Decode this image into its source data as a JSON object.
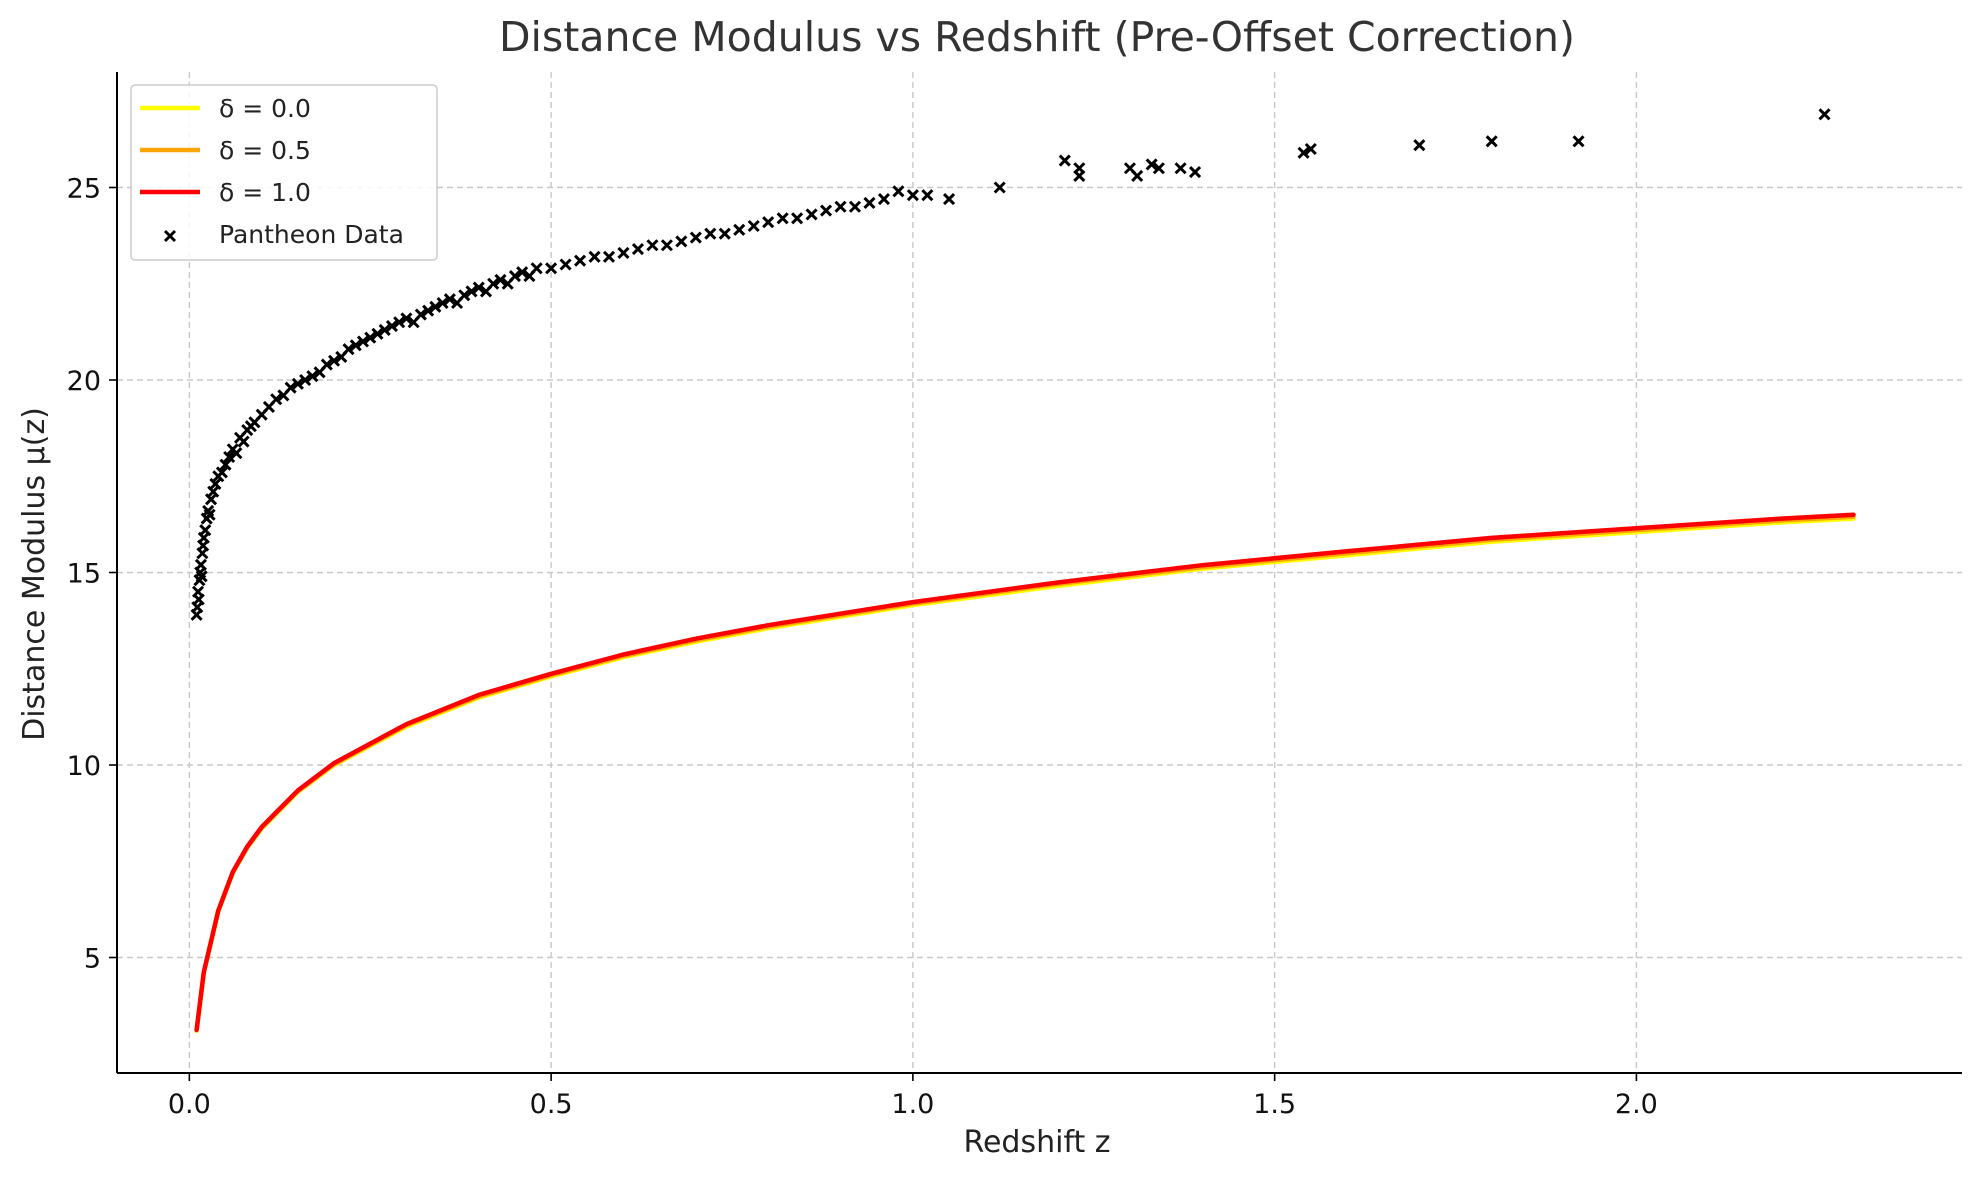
{
  "chart_data": {
    "type": "scatter",
    "title": "Distance Modulus vs Redshift (Pre-Offset Correction)",
    "xlabel": "Redshift z",
    "ylabel": "Distance Modulus μ(z)",
    "xlim": [
      -0.1,
      2.45
    ],
    "ylim": [
      2.0,
      28.0
    ],
    "xticks": [
      0.0,
      0.5,
      1.0,
      1.5,
      2.0
    ],
    "xtick_labels": [
      "0.0",
      "0.5",
      "1.0",
      "1.5",
      "2.0"
    ],
    "yticks": [
      5,
      10,
      15,
      20,
      25
    ],
    "ytick_labels": [
      "5",
      "10",
      "15",
      "20",
      "25"
    ],
    "grid": true,
    "legend_position": "top-left",
    "series": [
      {
        "name": "δ = 0.0",
        "kind": "line",
        "color": "#ffff00",
        "x": [
          0.01,
          0.02,
          0.04,
          0.06,
          0.08,
          0.1,
          0.15,
          0.2,
          0.3,
          0.4,
          0.5,
          0.6,
          0.7,
          0.8,
          1.0,
          1.2,
          1.4,
          1.6,
          1.8,
          2.0,
          2.2,
          2.3
        ],
        "y": [
          3.1,
          4.6,
          6.2,
          7.2,
          7.85,
          8.35,
          9.3,
          10.0,
          11.0,
          11.75,
          12.3,
          12.8,
          13.2,
          13.55,
          14.15,
          14.65,
          15.1,
          15.45,
          15.8,
          16.05,
          16.3,
          16.4
        ]
      },
      {
        "name": "δ = 0.5",
        "kind": "line",
        "color": "#ffa500",
        "x": [
          0.01,
          0.02,
          0.04,
          0.06,
          0.08,
          0.1,
          0.15,
          0.2,
          0.3,
          0.4,
          0.5,
          0.6,
          0.7,
          0.8,
          1.0,
          1.2,
          1.4,
          1.6,
          1.8,
          2.0,
          2.2,
          2.3
        ],
        "y": [
          3.11,
          4.61,
          6.21,
          7.21,
          7.86,
          8.37,
          9.32,
          10.02,
          11.03,
          11.78,
          12.33,
          12.83,
          13.24,
          13.59,
          14.19,
          14.7,
          15.14,
          15.5,
          15.85,
          16.1,
          16.35,
          16.45
        ]
      },
      {
        "name": "δ = 1.0",
        "kind": "line",
        "color": "#ff0000",
        "x": [
          0.01,
          0.02,
          0.04,
          0.06,
          0.08,
          0.1,
          0.15,
          0.2,
          0.3,
          0.4,
          0.5,
          0.6,
          0.7,
          0.8,
          1.0,
          1.2,
          1.4,
          1.6,
          1.8,
          2.0,
          2.2,
          2.3
        ],
        "y": [
          3.12,
          4.62,
          6.22,
          7.22,
          7.88,
          8.39,
          9.34,
          10.05,
          11.06,
          11.82,
          12.37,
          12.87,
          13.28,
          13.63,
          14.23,
          14.74,
          15.19,
          15.55,
          15.9,
          16.15,
          16.4,
          16.5
        ]
      },
      {
        "name": "Pantheon Data",
        "kind": "scatter",
        "color": "#000000",
        "marker": "x",
        "points": [
          [
            0.01,
            13.9
          ],
          [
            0.011,
            14.1
          ],
          [
            0.012,
            14.5
          ],
          [
            0.013,
            14.3
          ],
          [
            0.014,
            14.8
          ],
          [
            0.015,
            15.0
          ],
          [
            0.016,
            15.2
          ],
          [
            0.017,
            14.9
          ],
          [
            0.018,
            15.5
          ],
          [
            0.019,
            15.7
          ],
          [
            0.02,
            15.9
          ],
          [
            0.022,
            16.1
          ],
          [
            0.024,
            16.4
          ],
          [
            0.026,
            16.6
          ],
          [
            0.028,
            16.5
          ],
          [
            0.03,
            16.9
          ],
          [
            0.033,
            17.1
          ],
          [
            0.036,
            17.3
          ],
          [
            0.04,
            17.5
          ],
          [
            0.045,
            17.6
          ],
          [
            0.05,
            17.8
          ],
          [
            0.055,
            18.0
          ],
          [
            0.06,
            18.2
          ],
          [
            0.065,
            18.1
          ],
          [
            0.07,
            18.5
          ],
          [
            0.075,
            18.4
          ],
          [
            0.08,
            18.7
          ],
          [
            0.085,
            18.8
          ],
          [
            0.09,
            18.9
          ],
          [
            0.1,
            19.1
          ],
          [
            0.11,
            19.3
          ],
          [
            0.12,
            19.5
          ],
          [
            0.13,
            19.6
          ],
          [
            0.14,
            19.8
          ],
          [
            0.15,
            19.9
          ],
          [
            0.16,
            20.0
          ],
          [
            0.17,
            20.1
          ],
          [
            0.18,
            20.2
          ],
          [
            0.19,
            20.4
          ],
          [
            0.2,
            20.5
          ],
          [
            0.21,
            20.6
          ],
          [
            0.22,
            20.8
          ],
          [
            0.23,
            20.9
          ],
          [
            0.24,
            21.0
          ],
          [
            0.25,
            21.1
          ],
          [
            0.26,
            21.2
          ],
          [
            0.27,
            21.3
          ],
          [
            0.28,
            21.4
          ],
          [
            0.29,
            21.5
          ],
          [
            0.3,
            21.6
          ],
          [
            0.31,
            21.5
          ],
          [
            0.32,
            21.7
          ],
          [
            0.33,
            21.8
          ],
          [
            0.34,
            21.9
          ],
          [
            0.35,
            22.0
          ],
          [
            0.36,
            22.1
          ],
          [
            0.37,
            22.0
          ],
          [
            0.38,
            22.2
          ],
          [
            0.39,
            22.3
          ],
          [
            0.4,
            22.4
          ],
          [
            0.41,
            22.3
          ],
          [
            0.42,
            22.5
          ],
          [
            0.43,
            22.6
          ],
          [
            0.44,
            22.5
          ],
          [
            0.45,
            22.7
          ],
          [
            0.46,
            22.8
          ],
          [
            0.47,
            22.7
          ],
          [
            0.48,
            22.9
          ],
          [
            0.5,
            22.9
          ],
          [
            0.52,
            23.0
          ],
          [
            0.54,
            23.1
          ],
          [
            0.56,
            23.2
          ],
          [
            0.58,
            23.2
          ],
          [
            0.6,
            23.3
          ],
          [
            0.62,
            23.4
          ],
          [
            0.64,
            23.5
          ],
          [
            0.66,
            23.5
          ],
          [
            0.68,
            23.6
          ],
          [
            0.7,
            23.7
          ],
          [
            0.72,
            23.8
          ],
          [
            0.74,
            23.8
          ],
          [
            0.76,
            23.9
          ],
          [
            0.78,
            24.0
          ],
          [
            0.8,
            24.1
          ],
          [
            0.82,
            24.2
          ],
          [
            0.84,
            24.2
          ],
          [
            0.86,
            24.3
          ],
          [
            0.88,
            24.4
          ],
          [
            0.9,
            24.5
          ],
          [
            0.92,
            24.5
          ],
          [
            0.94,
            24.6
          ],
          [
            0.96,
            24.7
          ],
          [
            0.98,
            24.9
          ],
          [
            1.0,
            24.8
          ],
          [
            1.02,
            24.8
          ],
          [
            1.05,
            24.7
          ],
          [
            1.12,
            25.0
          ],
          [
            1.21,
            25.7
          ],
          [
            1.23,
            25.5
          ],
          [
            1.23,
            25.3
          ],
          [
            1.3,
            25.5
          ],
          [
            1.31,
            25.3
          ],
          [
            1.33,
            25.6
          ],
          [
            1.34,
            25.5
          ],
          [
            1.37,
            25.5
          ],
          [
            1.39,
            25.4
          ],
          [
            1.54,
            25.9
          ],
          [
            1.55,
            26.0
          ],
          [
            1.7,
            26.1
          ],
          [
            1.8,
            26.2
          ],
          [
            1.92,
            26.2
          ],
          [
            2.26,
            26.9
          ]
        ]
      }
    ]
  }
}
